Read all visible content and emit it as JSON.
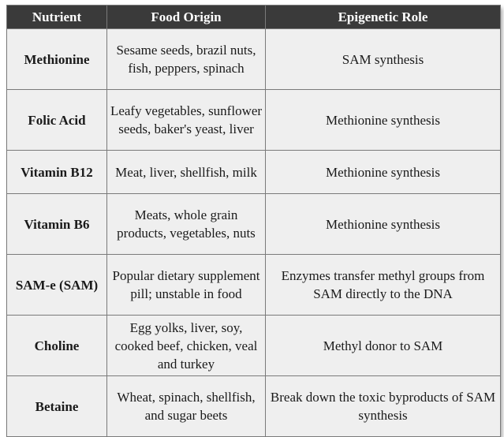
{
  "header": {
    "col1": "Nutrient",
    "col2": "Food Origin",
    "col3": "Epigenetic Role"
  },
  "rows": [
    {
      "nutrient": "Methionine",
      "origin": "Sesame seeds, brazil nuts, fish, peppers, spinach",
      "role": "SAM synthesis"
    },
    {
      "nutrient": "Folic Acid",
      "origin": "Leafy vegetables, sunflower seeds, baker's yeast, liver",
      "role": "Methionine synthesis"
    },
    {
      "nutrient": "Vitamin B12",
      "origin": "Meat, liver, shellfish, milk",
      "role": "Methionine synthesis"
    },
    {
      "nutrient": "Vitamin B6",
      "origin": "Meats, whole grain products, vegetables, nuts",
      "role": "Methionine synthesis"
    },
    {
      "nutrient": "SAM-e (SAM)",
      "origin": "Popular dietary supplement pill; unstable in food",
      "role": "Enzymes transfer methyl groups from SAM directly to the DNA"
    },
    {
      "nutrient": "Choline",
      "origin": "Egg yolks, liver, soy, cooked beef, chicken, veal and turkey",
      "role": "Methyl donor to SAM"
    },
    {
      "nutrient": "Betaine",
      "origin": "Wheat, spinach, shellfish, and sugar beets",
      "role": "Break down the toxic byproducts of SAM synthesis"
    }
  ]
}
